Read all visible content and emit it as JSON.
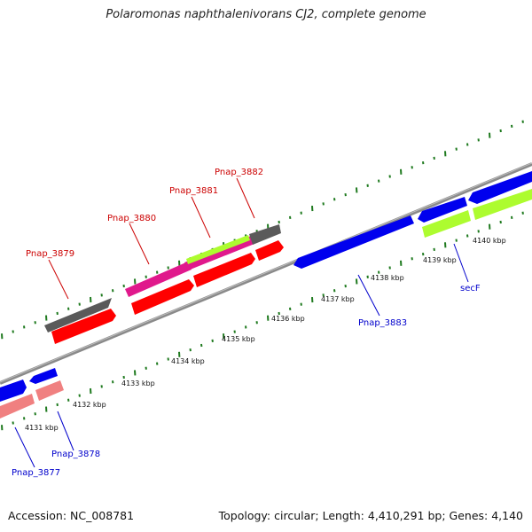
{
  "title": "Polaromonas naphthalenivorans CJ2, complete genome",
  "footer": {
    "accession": "Accession: NC_008781",
    "stats": "Topology: circular; Length: 4,410,291 bp; Genes: 4,140"
  },
  "colors": {
    "forward_label": "#cc0000",
    "reverse_label": "#0000cc",
    "tick": "#1f7a1f",
    "backbone": "#8a8a8a"
  },
  "ticks": [
    {
      "label": "4131 kbp"
    },
    {
      "label": "4132 kbp"
    },
    {
      "label": "4133 kbp"
    },
    {
      "label": "4134 kbp"
    },
    {
      "label": "4135 kbp"
    },
    {
      "label": "4136 kbp"
    },
    {
      "label": "4137 kbp"
    },
    {
      "label": "4138 kbp"
    },
    {
      "label": "4139 kbp"
    },
    {
      "label": "4140 kbp"
    }
  ],
  "gene_labels": [
    {
      "text": "Pnap_3879",
      "strand": "forward"
    },
    {
      "text": "Pnap_3880",
      "strand": "forward"
    },
    {
      "text": "Pnap_3881",
      "strand": "forward"
    },
    {
      "text": "Pnap_3882",
      "strand": "forward"
    },
    {
      "text": "Pnap_3883",
      "strand": "reverse"
    },
    {
      "text": "secF",
      "strand": "reverse"
    },
    {
      "text": "Pnap_3878",
      "strand": "reverse"
    },
    {
      "text": "Pnap_3877",
      "strand": "reverse"
    }
  ]
}
